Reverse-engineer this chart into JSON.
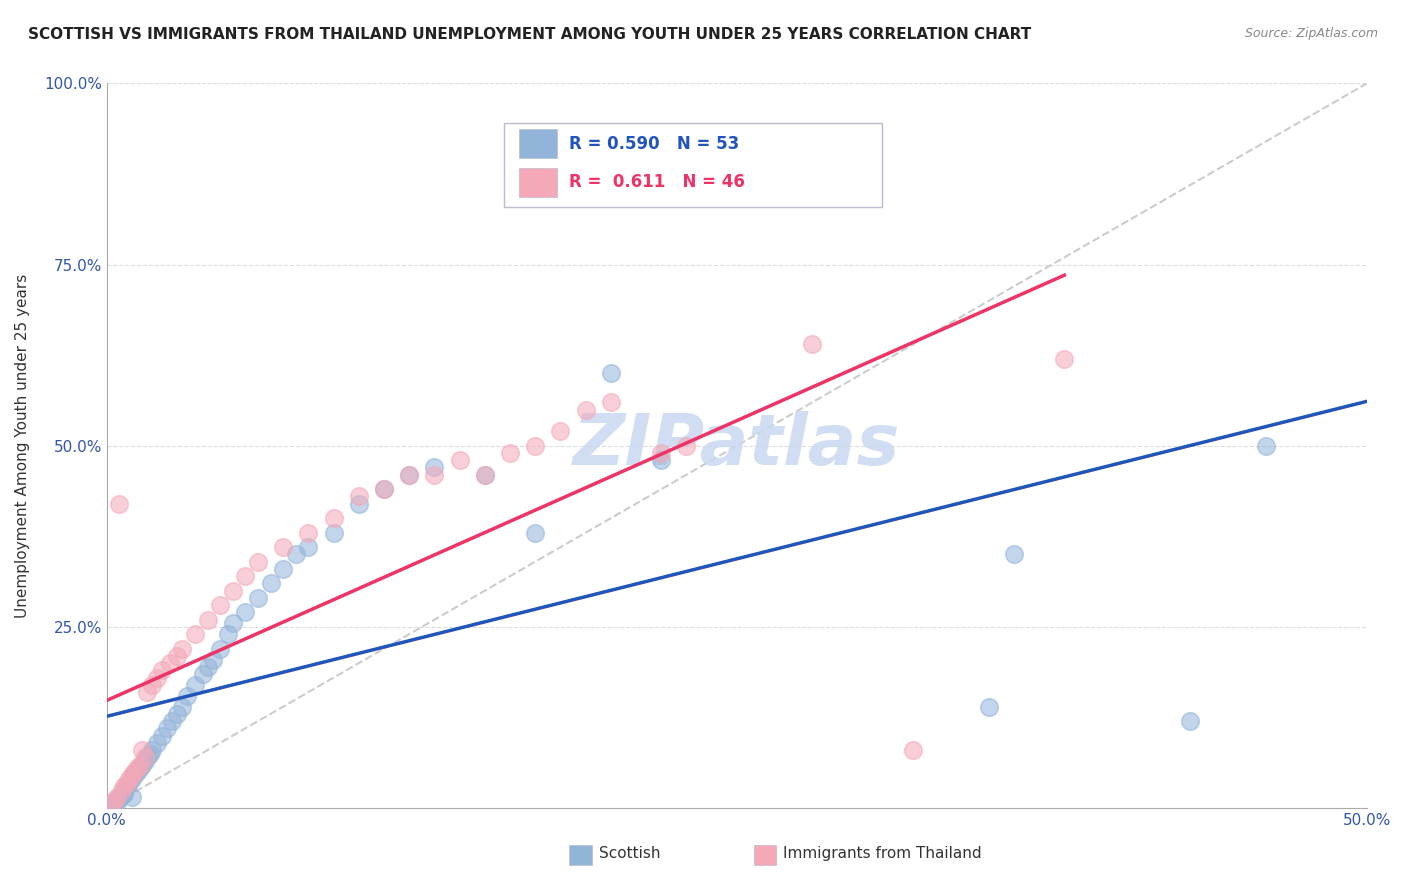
{
  "title": "SCOTTISH VS IMMIGRANTS FROM THAILAND UNEMPLOYMENT AMONG YOUTH UNDER 25 YEARS CORRELATION CHART",
  "source": "Source: ZipAtlas.com",
  "ylabel": "Unemployment Among Youth under 25 years",
  "xlim": [
    0.0,
    0.5
  ],
  "ylim": [
    0.0,
    1.0
  ],
  "xticks": [
    0.0,
    0.05,
    0.1,
    0.15,
    0.2,
    0.25,
    0.3,
    0.35,
    0.4,
    0.45,
    0.5
  ],
  "yticks": [
    0.0,
    0.25,
    0.5,
    0.75,
    1.0
  ],
  "xtick_labels": [
    "0.0%",
    "",
    "",
    "",
    "",
    "",
    "",
    "",
    "",
    "",
    "50.0%"
  ],
  "ytick_labels": [
    "",
    "25.0%",
    "50.0%",
    "75.0%",
    "100.0%"
  ],
  "blue_R": 0.59,
  "blue_N": 53,
  "pink_R": 0.611,
  "pink_N": 46,
  "blue_color": "#92b4d9",
  "pink_color": "#f4a8b8",
  "blue_line_color": "#2255bb",
  "pink_line_color": "#ee3366",
  "ref_line_color": "#cccccc",
  "watermark": "ZIPatlas",
  "watermark_color": "#c8d8f0",
  "legend1_label": "Scottish",
  "legend2_label": "Immigrants from Thailand",
  "blue_scatter_x": [
    0.002,
    0.003,
    0.004,
    0.005,
    0.005,
    0.006,
    0.007,
    0.007,
    0.008,
    0.009,
    0.01,
    0.01,
    0.011,
    0.012,
    0.013,
    0.014,
    0.015,
    0.016,
    0.017,
    0.018,
    0.02,
    0.022,
    0.024,
    0.026,
    0.028,
    0.03,
    0.032,
    0.035,
    0.038,
    0.04,
    0.042,
    0.045,
    0.048,
    0.05,
    0.055,
    0.06,
    0.065,
    0.07,
    0.075,
    0.08,
    0.09,
    0.1,
    0.11,
    0.12,
    0.13,
    0.15,
    0.17,
    0.2,
    0.22,
    0.35,
    0.36,
    0.43,
    0.46
  ],
  "blue_scatter_y": [
    0.005,
    0.008,
    0.01,
    0.012,
    0.015,
    0.018,
    0.02,
    0.025,
    0.03,
    0.035,
    0.015,
    0.04,
    0.045,
    0.05,
    0.055,
    0.06,
    0.065,
    0.07,
    0.075,
    0.08,
    0.09,
    0.1,
    0.11,
    0.12,
    0.13,
    0.14,
    0.155,
    0.17,
    0.185,
    0.195,
    0.205,
    0.22,
    0.24,
    0.255,
    0.27,
    0.29,
    0.31,
    0.33,
    0.35,
    0.36,
    0.38,
    0.42,
    0.44,
    0.46,
    0.47,
    0.46,
    0.38,
    0.6,
    0.48,
    0.14,
    0.35,
    0.12,
    0.5
  ],
  "pink_scatter_x": [
    0.002,
    0.003,
    0.004,
    0.005,
    0.006,
    0.007,
    0.008,
    0.009,
    0.01,
    0.011,
    0.012,
    0.013,
    0.014,
    0.015,
    0.016,
    0.018,
    0.02,
    0.022,
    0.025,
    0.028,
    0.03,
    0.035,
    0.04,
    0.045,
    0.05,
    0.055,
    0.06,
    0.07,
    0.08,
    0.09,
    0.1,
    0.11,
    0.12,
    0.13,
    0.14,
    0.15,
    0.16,
    0.17,
    0.18,
    0.19,
    0.2,
    0.22,
    0.23,
    0.28,
    0.32,
    0.38
  ],
  "pink_scatter_y": [
    0.005,
    0.01,
    0.015,
    0.42,
    0.025,
    0.03,
    0.035,
    0.04,
    0.045,
    0.05,
    0.055,
    0.06,
    0.08,
    0.07,
    0.16,
    0.17,
    0.18,
    0.19,
    0.2,
    0.21,
    0.22,
    0.24,
    0.26,
    0.28,
    0.3,
    0.32,
    0.34,
    0.36,
    0.38,
    0.4,
    0.43,
    0.44,
    0.46,
    0.46,
    0.48,
    0.46,
    0.49,
    0.5,
    0.52,
    0.55,
    0.56,
    0.49,
    0.5,
    0.64,
    0.08,
    0.62
  ],
  "figsize": [
    14.06,
    8.92
  ],
  "dpi": 100
}
